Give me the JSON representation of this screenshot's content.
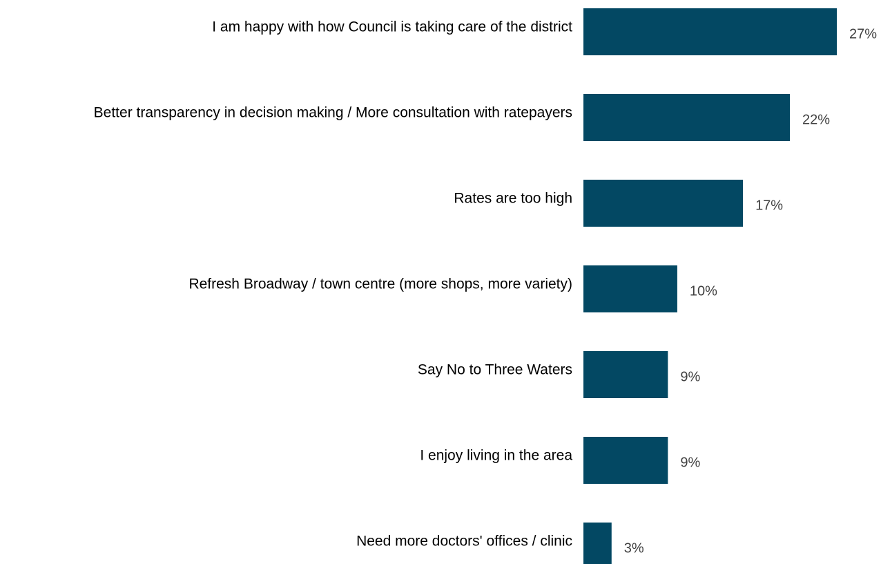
{
  "chart_data": {
    "type": "bar",
    "orientation": "horizontal",
    "categories": [
      "I am happy with how Council is taking care of the district",
      "Better transparency in decision making / More consultation with ratepayers",
      "Rates are too high",
      "Refresh Broadway / town centre (more shops, more variety)",
      "Say No to Three Waters",
      "I enjoy living in the area",
      "Need more doctors' offices / clinic"
    ],
    "values": [
      27,
      22,
      17,
      10,
      9,
      9,
      3
    ],
    "value_labels": [
      "27%",
      "22%",
      "17%",
      "10%",
      "9%",
      "9%",
      "3%"
    ],
    "unit": "%",
    "xlim": [
      0,
      27
    ],
    "grid": false,
    "legend": "none",
    "bar_color": "#034863"
  }
}
